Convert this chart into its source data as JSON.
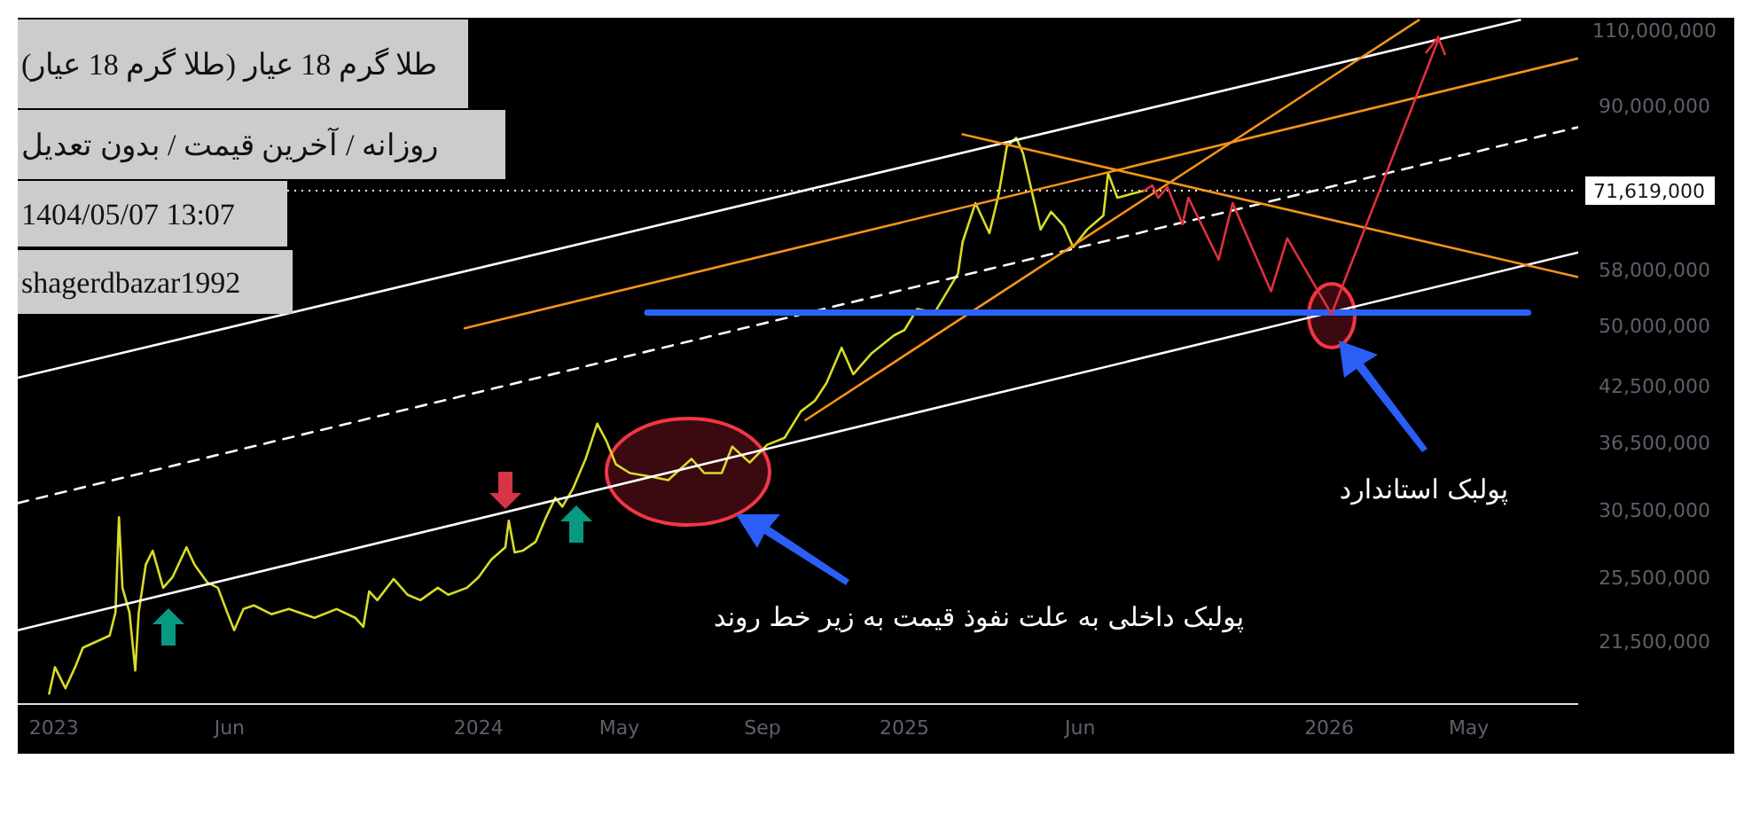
{
  "chart_data": {
    "type": "line",
    "title": "طلا گرم 18 عیار (طلا گرم 18 عیار)",
    "subtitle": "روزانه / آخرین قیمت / بدون تعدیل",
    "annotations": [
      "1404/05/07 13:07",
      "shagerdbazar1992",
      "پولبک داخلی به علت نفوذ قیمت به زیر خط روند",
      "پولبک استاندارد"
    ],
    "log": "y",
    "marker": "none",
    "xlim": [
      "2022-12-01",
      "2026-08-03"
    ],
    "xticks": [
      {
        "value": "2023-01-01",
        "label": "2023"
      },
      {
        "value": "2023-06-01",
        "label": "Jun"
      },
      {
        "value": "2024-01-01",
        "label": "2024"
      },
      {
        "value": "2024-05-01",
        "label": "May"
      },
      {
        "value": "2024-09-01",
        "label": "Sep"
      },
      {
        "value": "2025-01-01",
        "label": "2025"
      },
      {
        "value": "2025-06-01",
        "label": "Jun"
      },
      {
        "value": "2026-01-01",
        "label": "2026"
      },
      {
        "value": "2026-05-01",
        "label": "May"
      }
    ],
    "ylim": [
      18160000,
      113700000
    ],
    "yticks": [
      {
        "value": 21500000,
        "label": "21,500,000"
      },
      {
        "value": 25500000,
        "label": "25,500,000"
      },
      {
        "value": 30500000,
        "label": "30,500,000"
      },
      {
        "value": 36500000,
        "label": "36,500,000"
      },
      {
        "value": 42500000,
        "label": "42,500,000"
      },
      {
        "value": 50000000,
        "label": "50,000,000"
      },
      {
        "value": 58000000,
        "label": "58,000,000"
      },
      {
        "value": 90000000,
        "label": "90,000,000"
      },
      {
        "value": 110000000,
        "label": "110,000,000"
      }
    ],
    "ref_lines": [
      {
        "axis": "y",
        "value": 71619000,
        "label": "71,619,000",
        "color": "#ffffff",
        "line_style": "dotted"
      }
    ],
    "series": [
      {
        "color": "#d8dc28",
        "line_style": "solid",
        "x": [
          "2022-12-28",
          "2023-01-02",
          "2023-01-11",
          "2023-01-20",
          "2023-01-26",
          "2023-02-08",
          "2023-02-18",
          "2023-02-23",
          "2023-02-26",
          "2023-03-01",
          "2023-03-07",
          "2023-03-12",
          "2023-03-15",
          "2023-03-21",
          "2023-03-27",
          "2023-04-05",
          "2023-04-13",
          "2023-04-25",
          "2023-05-02",
          "2023-05-13",
          "2023-05-22",
          "2023-05-30",
          "2023-06-05",
          "2023-06-13",
          "2023-06-22",
          "2023-07-07",
          "2023-07-22",
          "2023-08-13",
          "2023-09-01",
          "2023-09-17",
          "2023-09-24",
          "2023-09-29",
          "2023-10-06",
          "2023-10-20",
          "2023-11-01",
          "2023-11-12",
          "2023-11-27",
          "2023-12-06",
          "2023-12-22",
          "2024-01-01",
          "2024-01-12",
          "2024-01-24",
          "2024-01-27",
          "2024-02-01",
          "2024-02-08",
          "2024-02-19",
          "2024-02-28",
          "2024-03-07",
          "2024-03-13",
          "2024-03-22",
          "2024-04-02",
          "2024-04-12",
          "2024-04-20",
          "2024-04-28",
          "2024-05-10",
          "2024-05-28",
          "2024-06-12",
          "2024-07-02",
          "2024-07-13",
          "2024-07-28",
          "2024-08-06",
          "2024-08-21",
          "2024-09-05",
          "2024-09-20",
          "2024-10-04",
          "2024-10-16",
          "2024-10-26",
          "2024-11-08",
          "2024-11-18",
          "2024-12-04",
          "2024-12-23",
          "2025-01-01",
          "2025-01-12",
          "2025-01-27",
          "2025-02-16",
          "2025-02-20",
          "2025-03-03",
          "2025-03-15",
          "2025-03-23",
          "2025-03-30",
          "2025-04-07",
          "2025-04-13",
          "2025-04-21",
          "2025-04-28",
          "2025-05-07",
          "2025-05-18",
          "2025-05-26",
          "2025-06-07",
          "2025-06-21",
          "2025-06-25",
          "2025-07-03",
          "2025-07-14",
          "2025-07-26"
        ],
        "values": [
          18670000,
          20040000,
          18940000,
          20140000,
          21110000,
          21500000,
          21810000,
          23200000,
          29920000,
          24780000,
          23200000,
          19860000,
          23200000,
          26350000,
          27360000,
          24780000,
          25490000,
          27610000,
          26350000,
          25130000,
          24780000,
          23200000,
          22120000,
          23410000,
          23640000,
          23090000,
          23410000,
          22870000,
          23410000,
          22870000,
          22330000,
          24540000,
          23970000,
          25370000,
          24320000,
          23970000,
          24780000,
          24320000,
          24780000,
          25490000,
          26720000,
          27610000,
          29640000,
          27240000,
          27360000,
          28010000,
          29920000,
          31520000,
          30780000,
          32270000,
          34970000,
          38420000,
          36650000,
          34470000,
          33670000,
          33350000,
          33040000,
          34970000,
          33670000,
          33670000,
          36140000,
          34630000,
          36310000,
          37000000,
          39710000,
          40840000,
          42820000,
          47060000,
          43850000,
          46400000,
          48640000,
          49340000,
          52210000,
          51720000,
          57380000,
          62460000,
          69280000,
          63940000,
          70940000,
          80580000,
          82500000,
          79070000,
          70940000,
          64550000,
          67670000,
          65160000,
          61580000,
          64550000,
          67030000,
          75060000,
          70270000,
          70940000,
          71619000
        ]
      },
      {
        "color": "#ffffff",
        "line_style": "solid",
        "x": [
          "2022-12-01",
          "2026-06-14"
        ],
        "values": [
          43440000,
          113000000
        ]
      },
      {
        "color": "#ffffff",
        "line_style": "dashed",
        "x": [
          "2022-12-01",
          "2026-08-03"
        ],
        "values": [
          31070000,
          84870000
        ]
      },
      {
        "color": "#ffffff",
        "line_style": "solid",
        "x": [
          "2022-12-01",
          "2026-08-03"
        ],
        "values": [
          22120000,
          60710000
        ]
      },
      {
        "color": "#f7931a",
        "line_style": "solid",
        "x": [
          "2023-12-20",
          "2026-08-03"
        ],
        "values": [
          49570000,
          102000000
        ]
      },
      {
        "color": "#f7931a",
        "line_style": "solid",
        "x": [
          "2025-02-20",
          "2026-08-03"
        ],
        "values": [
          83270000,
          56840000
        ]
      },
      {
        "color": "#f7931a",
        "line_style": "solid",
        "x": [
          "2024-10-08",
          "2026-03-19"
        ],
        "values": [
          38790000,
          113000000
        ]
      },
      {
        "color": "#2962ff",
        "line_style": "solid",
        "x": [
          "2024-05-25",
          "2026-06-21"
        ],
        "values": [
          51720000,
          51720000
        ]
      },
      {
        "color": "#e0303f",
        "line_style": "solid",
        "x": [
          "2025-07-26",
          "2025-08-02",
          "2025-08-07",
          "2025-08-15",
          "2025-08-28",
          "2025-09-02",
          "2025-09-28",
          "2025-10-10",
          "2025-11-12",
          "2025-11-26",
          "2026-01-03",
          "2026-04-05"
        ],
        "values": [
          71619000,
          72630000,
          70270000,
          72290000,
          65470000,
          70270000,
          59570000,
          69280000,
          54730000,
          63040000,
          51480000,
          107400000
        ]
      }
    ]
  }
}
